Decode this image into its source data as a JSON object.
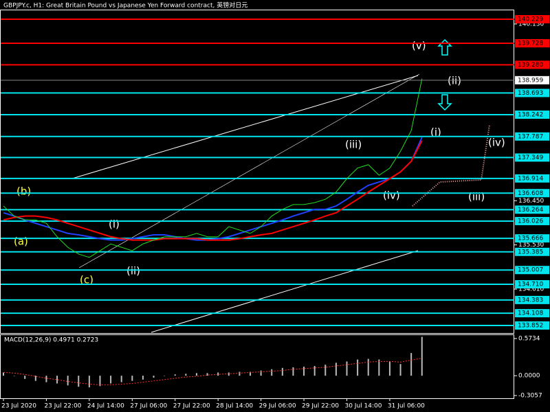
{
  "chart_data": {
    "type": "line",
    "title": "GBPJPY.c, H1:  Great Britain Pound vs Japanese Yen Forward contract, 英镑对日元",
    "x": [
      0,
      1,
      2,
      3,
      4,
      5,
      6,
      7,
      8,
      9,
      10,
      11,
      12,
      13,
      14,
      15,
      16,
      17,
      18,
      19,
      20,
      21,
      22,
      23,
      24,
      25,
      26,
      27,
      28,
      29,
      30,
      31,
      32,
      33,
      34,
      35,
      36,
      37,
      38,
      39
    ],
    "xlim": [
      0,
      47.6
    ],
    "xticks": [
      {
        "value": 0,
        "label": "23 Jul 2020"
      },
      {
        "value": 4,
        "label": "23 Jul 22:00"
      },
      {
        "value": 8,
        "label": "24 Jul 14:00"
      },
      {
        "value": 12,
        "label": "27 Jul 06:00"
      },
      {
        "value": 16,
        "label": "27 Jul 22:00"
      },
      {
        "value": 20,
        "label": "28 Jul 14:00"
      },
      {
        "value": 24,
        "label": "29 Jul 06:00"
      },
      {
        "value": 28,
        "label": "29 Jul 22:00"
      },
      {
        "value": 32,
        "label": "30 Jul 14:00"
      },
      {
        "value": 36,
        "label": "31 Jul 06:00"
      }
    ],
    "ylim": [
      133.695,
      140.429
    ],
    "yticks": [
      {
        "value": 140.13,
        "label": "140.130"
      },
      {
        "value": 136.45,
        "label": "136.450"
      },
      {
        "value": 135.53,
        "label": "135.530"
      },
      {
        "value": 134.61,
        "label": "134.610"
      }
    ],
    "series": [
      {
        "name": "GBPJPY.c",
        "color": "#22dd22",
        "values": [
          136.34,
          136.13,
          136.05,
          136.05,
          135.98,
          135.7,
          135.48,
          135.34,
          135.27,
          135.41,
          135.55,
          135.48,
          135.41,
          135.55,
          135.63,
          135.7,
          135.7,
          135.7,
          135.77,
          135.7,
          135.7,
          135.91,
          135.84,
          135.77,
          135.91,
          136.13,
          136.27,
          136.37,
          136.37,
          136.41,
          136.48,
          136.63,
          136.91,
          137.13,
          137.2,
          136.98,
          137.13,
          137.48,
          137.91,
          138.99
        ]
      },
      {
        "name": "MA red",
        "color": "#ff0000",
        "values": [
          136.05,
          136.1,
          136.13,
          136.13,
          136.1,
          136.05,
          135.98,
          135.91,
          135.84,
          135.77,
          135.7,
          135.66,
          135.63,
          135.63,
          135.63,
          135.66,
          135.66,
          135.66,
          135.66,
          135.63,
          135.63,
          135.63,
          135.66,
          135.7,
          135.74,
          135.77,
          135.84,
          135.91,
          135.98,
          136.05,
          136.13,
          136.2,
          136.34,
          136.48,
          136.63,
          136.77,
          136.91,
          137.05,
          137.27,
          137.7
        ]
      },
      {
        "name": "MA blue",
        "color": "#2040ff",
        "values": [
          136.2,
          136.13,
          136.05,
          135.98,
          135.91,
          135.84,
          135.77,
          135.74,
          135.7,
          135.66,
          135.63,
          135.63,
          135.66,
          135.7,
          135.74,
          135.74,
          135.7,
          135.66,
          135.63,
          135.63,
          135.66,
          135.7,
          135.77,
          135.84,
          135.91,
          135.98,
          136.05,
          136.13,
          136.2,
          136.27,
          136.27,
          136.34,
          136.48,
          136.63,
          136.77,
          136.84,
          136.91,
          137.05,
          137.27,
          137.77
        ]
      }
    ],
    "current_price": 138.959,
    "levels": {
      "red": [
        140.229,
        139.728,
        {
          "value": 139.28,
          "label": "139.280"
        }
      ],
      "cyan": [
        138.693,
        138.242,
        137.787,
        137.349,
        136.914,
        136.608,
        136.264,
        136.026,
        135.666,
        135.385,
        135.007,
        {
          "value": 134.71,
          "label": "134.710"
        },
        134.383,
        134.108,
        133.852
      ]
    },
    "waves": {
      "yellow": [
        "(b)",
        "(a)",
        "(c)"
      ],
      "white": [
        "(i)",
        "(ii)",
        "(iii)",
        "(iv)",
        "(v)"
      ],
      "right": [
        "(i)",
        "(ii)",
        "(iii)",
        "(iv)"
      ]
    },
    "macd": {
      "label": "MACD(12,26,9) 0.4971 0.2723",
      "ylim": [
        -0.348,
        0.637
      ],
      "yticks": [
        0.5734,
        {
          "value": 0,
          "label": "0.0000"
        },
        -0.3057
      ],
      "histogram": [
        0.05,
        0,
        -0.05,
        -0.08,
        -0.1,
        -0.12,
        -0.15,
        -0.17,
        -0.18,
        -0.16,
        -0.12,
        -0.1,
        -0.08,
        -0.06,
        -0.03,
        0,
        0.02,
        0.03,
        0.04,
        0.04,
        0.05,
        0.05,
        0.06,
        0.06,
        0.08,
        0.1,
        0.12,
        0.13,
        0.14,
        0.15,
        0.17,
        0.2,
        0.22,
        0.25,
        0.26,
        0.25,
        0.22,
        0.18,
        0.35,
        0.6
      ],
      "signal": [
        0.05,
        0.04,
        0.02,
        -0.01,
        -0.04,
        -0.06,
        -0.09,
        -0.11,
        -0.13,
        -0.14,
        -0.14,
        -0.13,
        -0.12,
        -0.1,
        -0.08,
        -0.06,
        -0.04,
        -0.02,
        -0.01,
        0.01,
        0.02,
        0.03,
        0.04,
        0.05,
        0.06,
        0.07,
        0.08,
        0.1,
        0.11,
        0.12,
        0.13,
        0.15,
        0.17,
        0.19,
        0.21,
        0.22,
        0.22,
        0.21,
        0.24,
        0.27
      ]
    }
  }
}
